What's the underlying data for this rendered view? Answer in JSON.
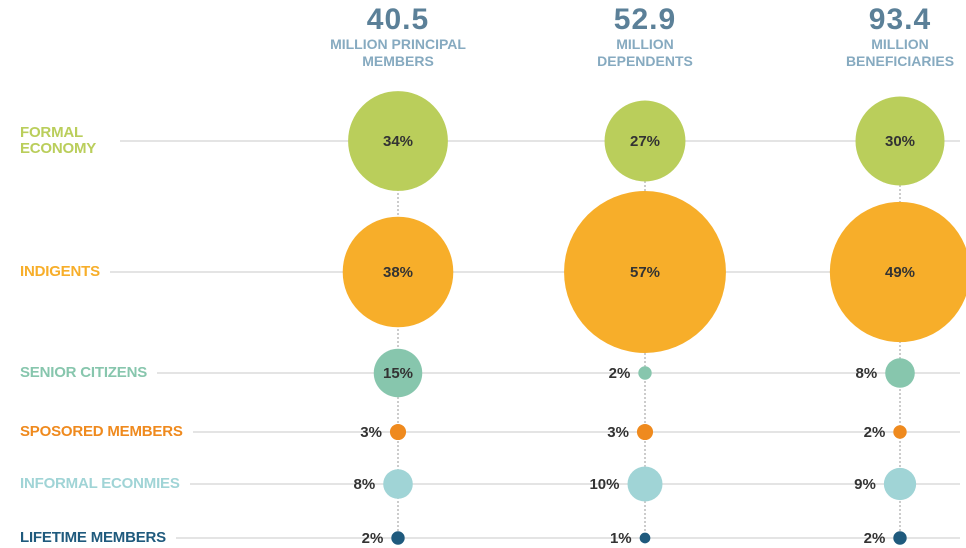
{
  "chart_data": {
    "type": "bubble",
    "columns": [
      {
        "total": 40.5,
        "label": "MILLION PRINCIPAL MEMBERS"
      },
      {
        "total": 52.9,
        "label": "MILLION DEPENDENTS"
      },
      {
        "total": 93.4,
        "label": "MILLION BENEFICIARIES"
      }
    ],
    "series": [
      {
        "name": "FORMAL ECONOMY",
        "color": "#bace5b",
        "values": [
          34,
          27,
          30
        ],
        "value_labels": [
          "34%",
          "27%",
          "30%"
        ]
      },
      {
        "name": "INDIGENTS",
        "color": "#f7ae2a",
        "values": [
          38,
          57,
          49
        ],
        "value_labels": [
          "38%",
          "57%",
          "49%"
        ]
      },
      {
        "name": "SENIOR CITIZENS",
        "color": "#87c6ad",
        "values": [
          15,
          2,
          8
        ],
        "value_labels": [
          "15%",
          "2%",
          "8%"
        ]
      },
      {
        "name": "SPOSORED MEMBERS",
        "color": "#ef8a1e",
        "values": [
          3,
          3,
          2
        ],
        "value_labels": [
          "3%",
          "3%",
          "2%"
        ]
      },
      {
        "name": "INFORMAL ECONMIES",
        "color": "#a0d4d6",
        "values": [
          8,
          10,
          9
        ],
        "value_labels": [
          "8%",
          "10%",
          "9%"
        ]
      },
      {
        "name": "LIFETIME MEMBERS",
        "color": "#1f5a7d",
        "values": [
          2,
          1,
          2
        ],
        "value_labels": [
          "2%",
          "1%",
          "2%"
        ]
      }
    ]
  }
}
